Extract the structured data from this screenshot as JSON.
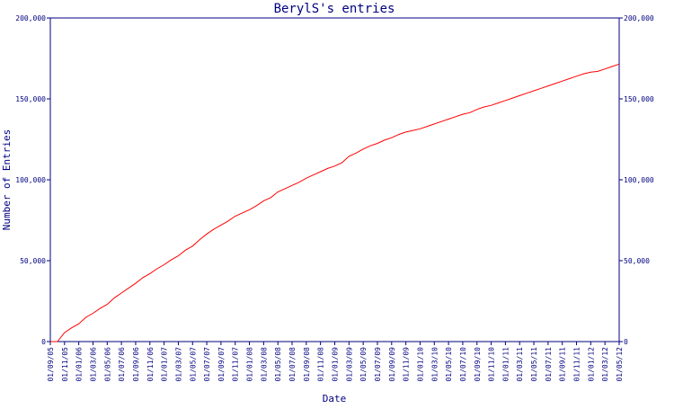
{
  "chart_data": {
    "type": "line",
    "title": "BerylS's entries",
    "xlabel": "Date",
    "ylabel": "Number of Entries",
    "ylim": [
      0,
      200000
    ],
    "y_ticks": [
      0,
      50000,
      100000,
      150000,
      200000
    ],
    "y_tick_labels": [
      "0",
      "50,000",
      "100,000",
      "150,000",
      "200,000"
    ],
    "x_tick_labels": [
      "01/09/05",
      "01/11/05",
      "01/01/06",
      "01/03/06",
      "01/05/06",
      "01/07/06",
      "01/09/06",
      "01/11/06",
      "01/01/07",
      "01/03/07",
      "01/05/07",
      "01/07/07",
      "01/09/07",
      "01/11/07",
      "01/01/08",
      "01/03/08",
      "01/05/08",
      "01/07/08",
      "01/09/08",
      "01/11/08",
      "01/01/09",
      "01/03/09",
      "01/05/09",
      "01/07/09",
      "01/09/09",
      "01/11/09",
      "01/01/10",
      "01/03/10",
      "01/05/10",
      "01/07/10",
      "01/09/10",
      "01/11/10",
      "01/01/11",
      "01/03/11",
      "01/05/11",
      "01/07/11",
      "01/09/11",
      "01/11/11",
      "01/01/12",
      "01/03/12",
      "01/05/12"
    ],
    "grid": false,
    "series": [
      {
        "color": "#ff0000",
        "x": [
          "01/09/05",
          "01/10/05",
          "01/11/05",
          "01/12/05",
          "01/01/06",
          "01/02/06",
          "01/03/06",
          "01/04/06",
          "01/05/06",
          "01/06/06",
          "01/07/06",
          "01/08/06",
          "01/09/06",
          "01/10/06",
          "01/11/06",
          "01/12/06",
          "01/01/07",
          "01/02/07",
          "01/03/07",
          "01/04/07",
          "01/05/07",
          "01/06/07",
          "01/07/07",
          "01/08/07",
          "01/09/07",
          "01/10/07",
          "01/11/07",
          "01/12/07",
          "01/01/08",
          "01/02/08",
          "01/03/08",
          "01/04/08",
          "01/05/08",
          "01/06/08",
          "01/07/08",
          "01/08/08",
          "01/09/08",
          "01/10/08",
          "01/11/08",
          "01/12/08",
          "01/01/09",
          "01/02/09",
          "01/03/09",
          "01/04/09",
          "01/05/09",
          "01/06/09",
          "01/07/09",
          "01/08/09",
          "01/09/09",
          "01/10/09",
          "01/11/09",
          "01/12/09",
          "01/01/10",
          "01/02/10",
          "01/03/10",
          "01/04/10",
          "01/05/10",
          "01/06/10",
          "01/07/10",
          "01/08/10",
          "01/09/10",
          "01/10/10",
          "01/11/10",
          "01/12/10",
          "01/01/11",
          "01/02/11",
          "01/03/11",
          "01/04/11",
          "01/05/11",
          "01/06/11",
          "01/07/11",
          "01/08/11",
          "01/09/11",
          "01/10/11",
          "01/11/11",
          "01/12/11",
          "01/01/12",
          "01/02/12",
          "01/03/12",
          "01/04/12",
          "01/05/12"
        ],
        "values": [
          0,
          0,
          5500,
          8500,
          11000,
          15000,
          17500,
          20500,
          23000,
          27000,
          30000,
          33000,
          36000,
          39500,
          42000,
          45000,
          47500,
          50500,
          53000,
          56500,
          59000,
          63000,
          66500,
          69500,
          72000,
          74500,
          77500,
          79500,
          81500,
          84000,
          87000,
          89000,
          92500,
          94500,
          96500,
          98500,
          101000,
          103000,
          105000,
          107000,
          108500,
          110500,
          114500,
          116500,
          119000,
          121000,
          122500,
          124500,
          126000,
          128000,
          129500,
          130500,
          131500,
          133000,
          134500,
          136000,
          137500,
          139000,
          140500,
          141500,
          143500,
          145000,
          146000,
          147500,
          149000,
          150500,
          152000,
          153500,
          155000,
          156500,
          158000,
          159500,
          161000,
          162500,
          164000,
          165500,
          166500,
          167000,
          168500,
          170000,
          171500
        ]
      }
    ]
  }
}
